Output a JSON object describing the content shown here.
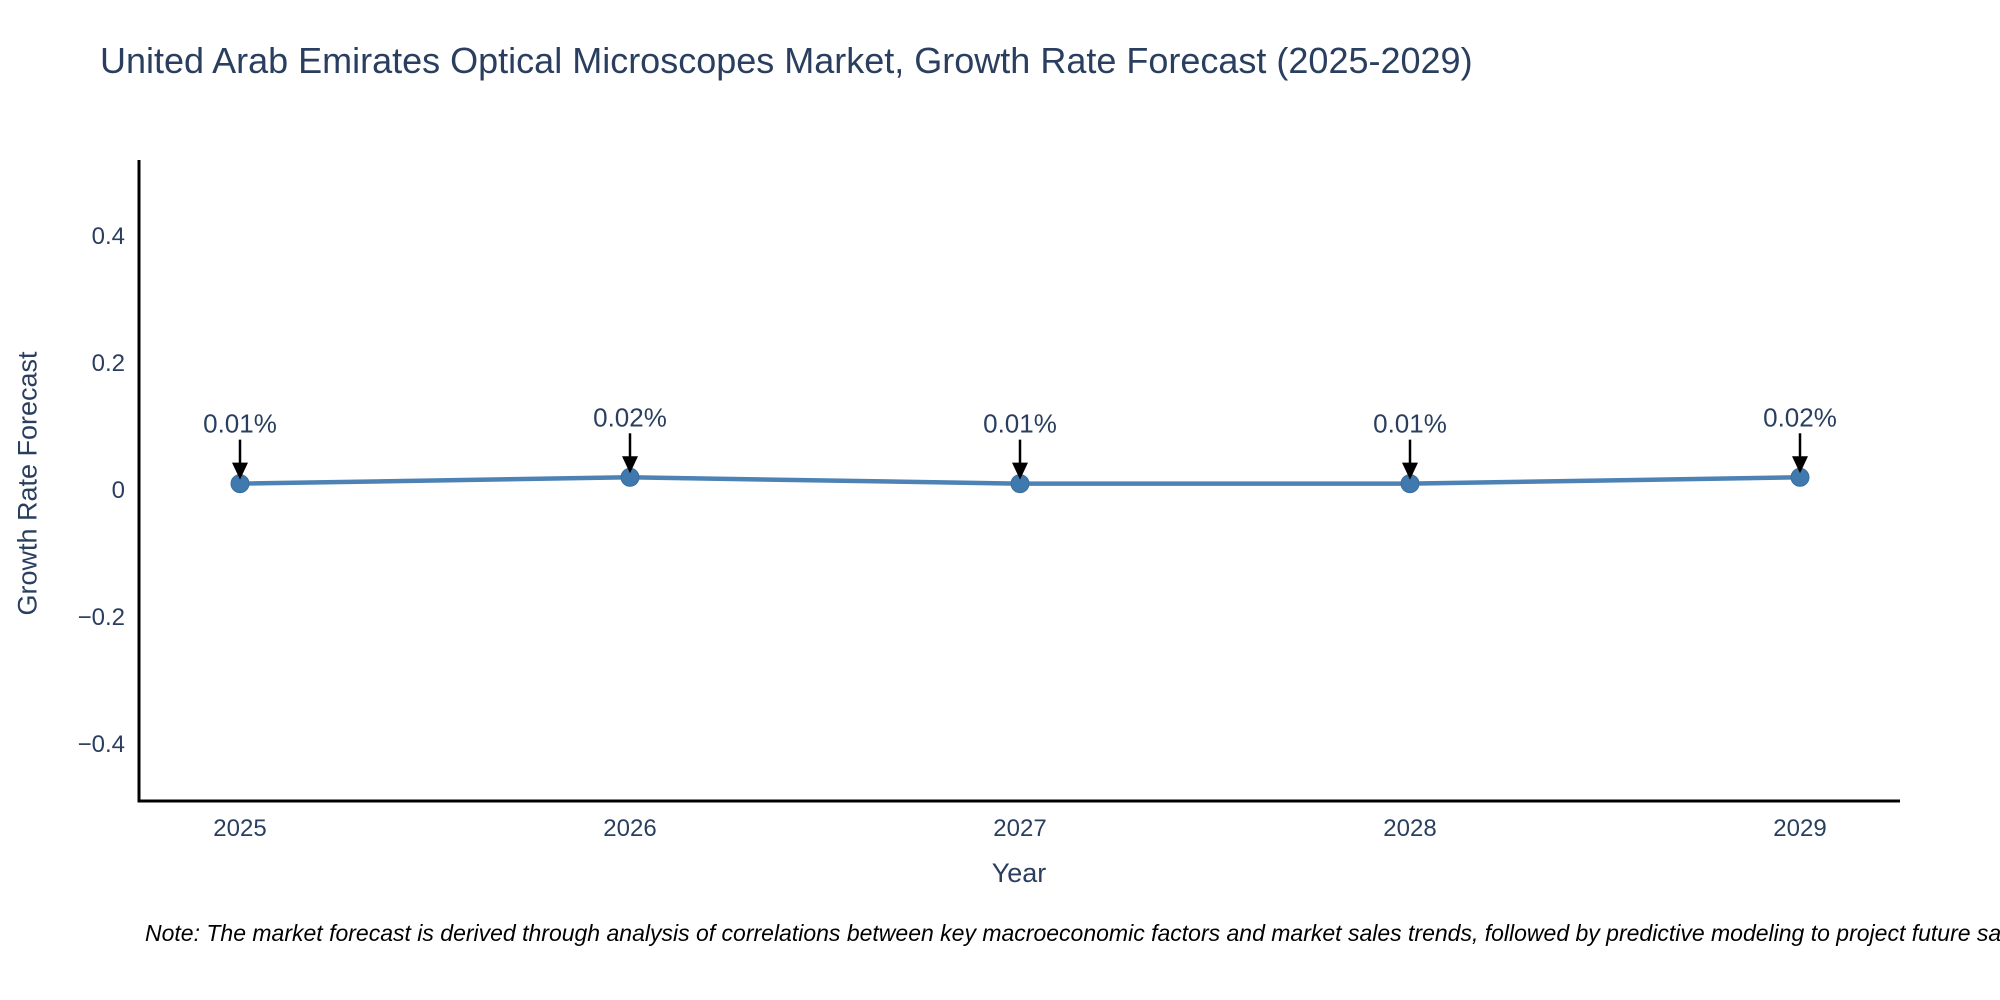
{
  "note": "Note: The market forecast is derived through analysis of correlations between key macroeconomic factors and market sales trends, followed by predictive modeling to project future sa",
  "chart_data": {
    "type": "line",
    "title": "United Arab Emirates Optical Microscopes Market, Growth Rate Forecast (2025-2029)",
    "xlabel": "Year",
    "ylabel": "Growth Rate Forecast",
    "categories": [
      "2025",
      "2026",
      "2027",
      "2028",
      "2029"
    ],
    "values": [
      0.01,
      0.02,
      0.01,
      0.01,
      0.02
    ],
    "point_labels": [
      "0.01%",
      "0.02%",
      "0.01%",
      "0.01%",
      "0.02%"
    ],
    "yticks": [
      {
        "label": "0.4",
        "value": 0.4
      },
      {
        "label": "0.2",
        "value": 0.2
      },
      {
        "label": "0",
        "value": 0
      },
      {
        "label": "−0.2",
        "value": -0.2
      },
      {
        "label": "−0.4",
        "value": -0.4
      }
    ],
    "ylim": [
      -0.5,
      0.52
    ],
    "grid": false,
    "legend": "none",
    "annotations": "value label with black down-arrow above each data point",
    "colors": {
      "line": "#4d82b5",
      "marker": "#4079ae",
      "marker_border": "#386d9e",
      "text": "#2a3f5f",
      "axis": "#000000",
      "arrow": "#000000",
      "note_text": "#000000",
      "background": "#ffffff"
    }
  }
}
